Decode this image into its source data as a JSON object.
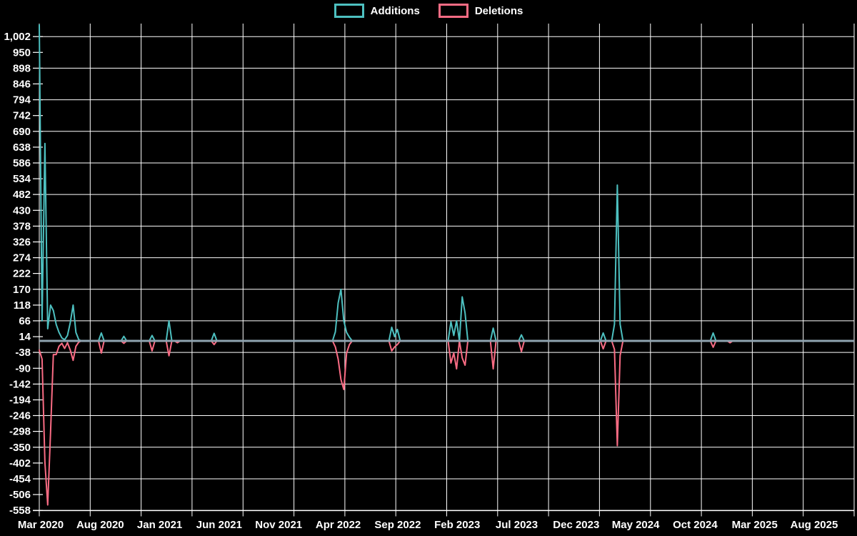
{
  "legend": {
    "position": "top-center",
    "items": [
      {
        "label": "Additions",
        "color": "#4DC0C0"
      },
      {
        "label": "Deletions",
        "color": "#FA6C84"
      }
    ]
  },
  "chart_data": {
    "type": "line",
    "description": "Weekly code additions (teal) and deletions (pink) over time; values are 0 for all weeks not listed in series points.",
    "background_color": "#000000",
    "grid": true,
    "grid_color": "#FFFFFF",
    "text_color": "#FFFFFF",
    "baseline": {
      "value": 0,
      "color": "#8FA3B0"
    },
    "x_axis": {
      "tick_labels": [
        "Mar 2020",
        "Aug 2020",
        "Jan 2021",
        "Jun 2021",
        "Nov 2021",
        "Apr 2022",
        "Sep 2022",
        "Feb 2023",
        "Jul 2023",
        "Dec 2023",
        "May 2024",
        "Oct 2024",
        "Mar 2025",
        "Aug 2025"
      ]
    },
    "y_axis": {
      "min": -558,
      "max": 1002,
      "tick_step": 52,
      "grid_step": 104
    },
    "x_unit": "week index starting Mar 2020 (one point per week)",
    "weeks_total": 290,
    "series": [
      {
        "name": "Additions",
        "color": "#4DC0C0",
        "points": [
          [
            0,
            1040
          ],
          [
            1,
            66
          ],
          [
            2,
            650
          ],
          [
            3,
            40
          ],
          [
            4,
            118
          ],
          [
            5,
            100
          ],
          [
            6,
            54
          ],
          [
            7,
            28
          ],
          [
            8,
            10
          ],
          [
            9,
            4
          ],
          [
            10,
            18
          ],
          [
            11,
            60
          ],
          [
            12,
            118
          ],
          [
            13,
            28
          ],
          [
            14,
            4
          ],
          [
            22,
            26
          ],
          [
            30,
            15
          ],
          [
            40,
            18
          ],
          [
            46,
            66
          ],
          [
            62,
            25
          ],
          [
            105,
            30
          ],
          [
            106,
            125
          ],
          [
            107,
            170
          ],
          [
            108,
            66
          ],
          [
            109,
            28
          ],
          [
            110,
            12
          ],
          [
            125,
            45
          ],
          [
            126,
            14
          ],
          [
            127,
            38
          ],
          [
            146,
            63
          ],
          [
            147,
            18
          ],
          [
            148,
            66
          ],
          [
            150,
            145
          ],
          [
            151,
            92
          ],
          [
            161,
            42
          ],
          [
            171,
            20
          ],
          [
            200,
            26
          ],
          [
            204,
            55
          ],
          [
            205,
            513
          ],
          [
            206,
            55
          ],
          [
            239,
            26
          ]
        ]
      },
      {
        "name": "Deletions",
        "color": "#FA6C84",
        "points": [
          [
            0,
            -30
          ],
          [
            1,
            -60
          ],
          [
            2,
            -400
          ],
          [
            3,
            -540
          ],
          [
            4,
            -300
          ],
          [
            5,
            -45
          ],
          [
            6,
            -45
          ],
          [
            7,
            -18
          ],
          [
            8,
            -8
          ],
          [
            9,
            -25
          ],
          [
            10,
            -6
          ],
          [
            11,
            -30
          ],
          [
            12,
            -64
          ],
          [
            13,
            -18
          ],
          [
            14,
            -4
          ],
          [
            22,
            -40
          ],
          [
            30,
            -8
          ],
          [
            40,
            -33
          ],
          [
            46,
            -49
          ],
          [
            49,
            -6
          ],
          [
            62,
            -12
          ],
          [
            105,
            -20
          ],
          [
            106,
            -60
          ],
          [
            107,
            -127
          ],
          [
            108,
            -160
          ],
          [
            109,
            -40
          ],
          [
            110,
            -12
          ],
          [
            125,
            -33
          ],
          [
            126,
            -20
          ],
          [
            127,
            -12
          ],
          [
            146,
            -73
          ],
          [
            147,
            -40
          ],
          [
            148,
            -92
          ],
          [
            150,
            -56
          ],
          [
            151,
            -80
          ],
          [
            161,
            -92
          ],
          [
            171,
            -35
          ],
          [
            200,
            -26
          ],
          [
            204,
            -28
          ],
          [
            205,
            -345
          ],
          [
            206,
            -48
          ],
          [
            239,
            -21
          ],
          [
            245,
            -6
          ]
        ]
      }
    ]
  }
}
